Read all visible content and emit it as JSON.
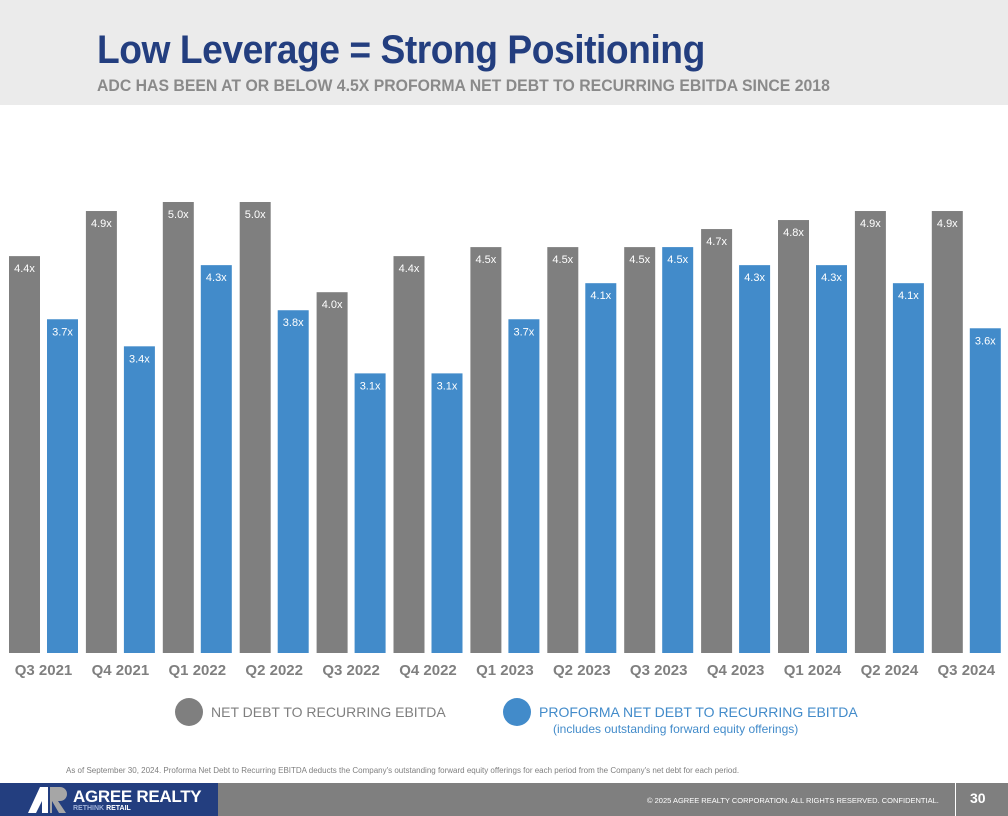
{
  "header": {
    "title": "Low Leverage = Strong Positioning",
    "subtitle": "ADC HAS BEEN AT OR BELOW 4.5X PROFORMA NET DEBT TO RECURRING EBITDA SINCE 2018"
  },
  "chart_data": {
    "type": "bar",
    "title": "",
    "xlabel": "",
    "ylabel": "",
    "ylim": [
      0,
      5.0
    ],
    "grid": false,
    "legend_position": "bottom",
    "categories": [
      "Q3 2021",
      "Q4 2021",
      "Q1 2022",
      "Q2 2022",
      "Q3 2022",
      "Q4 2022",
      "Q1 2023",
      "Q2 2023",
      "Q3 2023",
      "Q4 2023",
      "Q1 2024",
      "Q2 2024",
      "Q3 2024"
    ],
    "series": [
      {
        "name": "NET DEBT TO RECURRING EBITDA",
        "color": "#7f7f7f",
        "values": [
          4.4,
          4.9,
          5.0,
          5.0,
          4.0,
          4.4,
          4.5,
          4.5,
          4.5,
          4.7,
          4.8,
          4.9,
          4.9
        ],
        "labels": [
          "4.4x",
          "4.9x",
          "5.0x",
          "5.0x",
          "4.0x",
          "4.4x",
          "4.5x",
          "4.5x",
          "4.5x",
          "4.7x",
          "4.8x",
          "4.9x",
          "4.9x"
        ]
      },
      {
        "name": "PROFORMA NET DEBT TO RECURRING EBITDA",
        "note": "(includes outstanding forward equity offerings)",
        "color": "#428bca",
        "values": [
          3.7,
          3.4,
          4.3,
          3.8,
          3.1,
          3.1,
          3.7,
          4.1,
          4.5,
          4.3,
          4.3,
          4.1,
          3.6
        ],
        "labels": [
          "3.7x",
          "3.4x",
          "4.3x",
          "3.8x",
          "3.1x",
          "3.1x",
          "3.7x",
          "4.1x",
          "4.5x",
          "4.3x",
          "4.3x",
          "4.1x",
          "3.6x"
        ]
      }
    ]
  },
  "legend": {
    "items": [
      {
        "label": "NET DEBT TO RECURRING EBITDA",
        "color": "#7f7f7f",
        "text_color": "#7f7f7f"
      },
      {
        "label": "PROFORMA NET DEBT TO RECURRING EBITDA",
        "sub": "(includes outstanding forward equity offerings)",
        "color": "#428bca",
        "text_color": "#428bca"
      }
    ]
  },
  "footnote": "As of September 30, 2024. Proforma Net Debt to Recurring EBITDA deducts the Company's outstanding forward equity offerings for each period from the Company's net debt for each period.",
  "footer": {
    "brand_name": "AGREE REALTY",
    "tagline_highlight": "RETHINK",
    "tagline_rest": " RETAIL",
    "copyright": "© 2025 AGREE REALTY CORPORATION. ALL RIGHTS RESERVED. CONFIDENTIAL.",
    "page_number": "30",
    "brand_color": "#233e7f"
  }
}
